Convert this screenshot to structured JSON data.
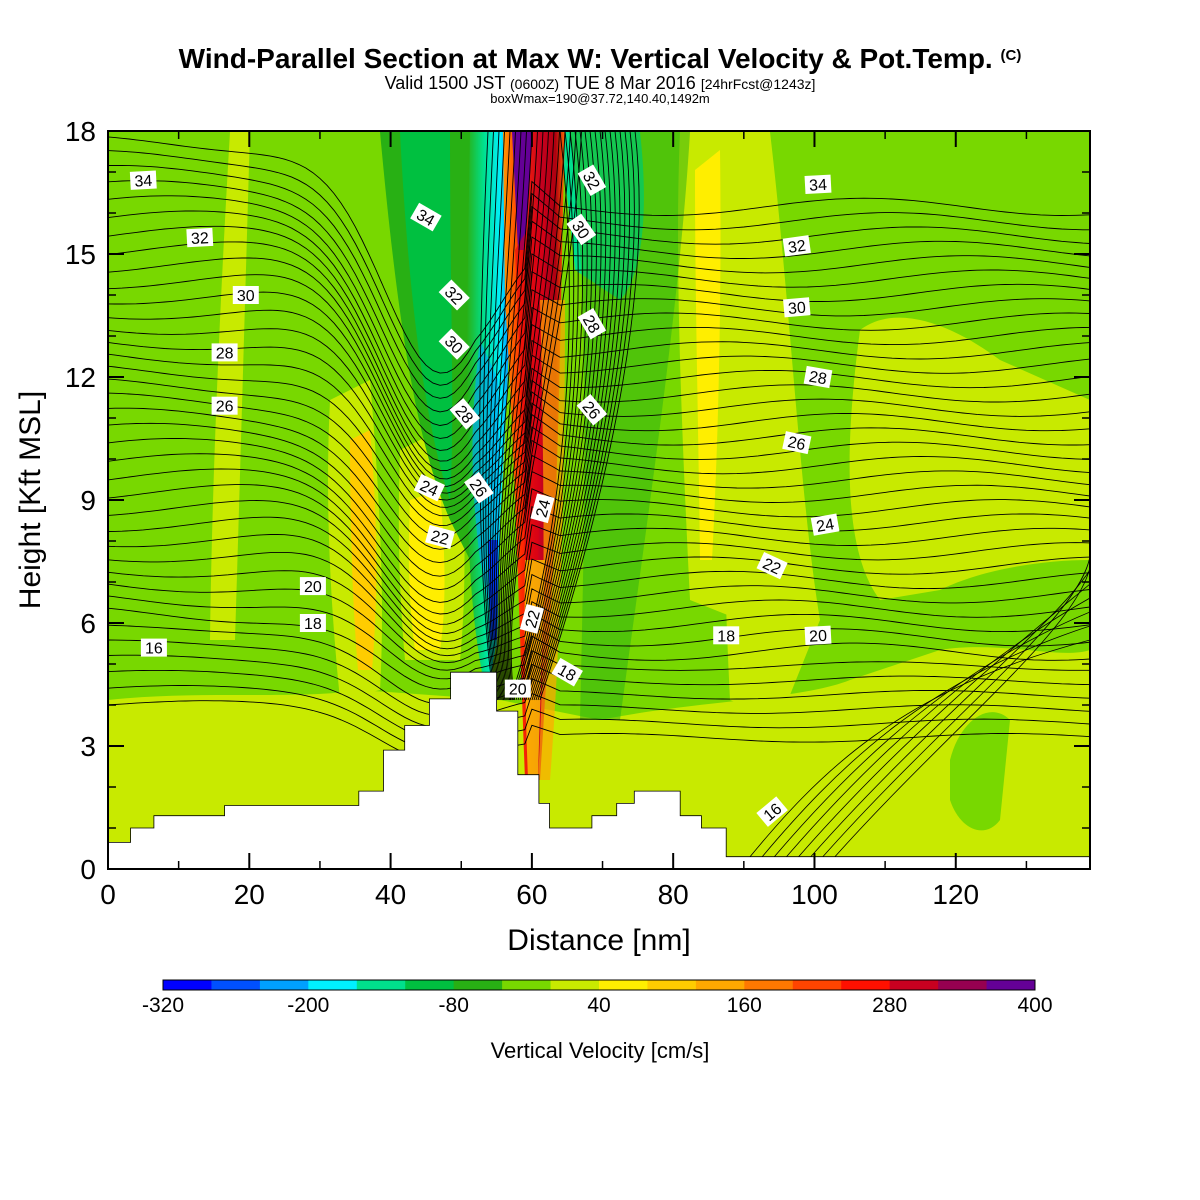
{
  "title": {
    "main": "Wind-Parallel Section at Max W: Vertical Velocity & Pot.Temp.",
    "copyright": "(C)",
    "valid_prefix": "Valid 1500 JST",
    "valid_utc": "(0600Z)",
    "valid_date": "TUE 8 Mar 2016",
    "forecast": "[24hrFcst@1243z]",
    "box": "boxWmax=190@37.72,140.40,1492m"
  },
  "chart_data": {
    "type": "heatmap",
    "xlabel": "Distance [nm]",
    "ylabel": "Height [Kft MSL]",
    "xlim": [
      0,
      139
    ],
    "ylim": [
      0,
      18
    ],
    "x_ticks": [
      "0",
      "20",
      "40",
      "60",
      "80",
      "100",
      "120"
    ],
    "y_ticks": [
      "0",
      "3",
      "6",
      "9",
      "12",
      "15",
      "18"
    ],
    "colorbar": {
      "label": "Vertical Velocity [cm/s]",
      "tick_labels": [
        "-320",
        "-200",
        "-80",
        "40",
        "160",
        "280",
        "400"
      ],
      "colors": [
        "#0000ff",
        "#0050ff",
        "#00a0ff",
        "#00f0ff",
        "#00e08c",
        "#00c040",
        "#28b014",
        "#78d800",
        "#c8ea00",
        "#ffee00",
        "#ffcc00",
        "#ffa800",
        "#ff7800",
        "#ff4400",
        "#ff1000",
        "#c80020",
        "#960050",
        "#640096"
      ]
    },
    "contour_labels": [
      {
        "text": "34",
        "x": 5,
        "y": 16.8,
        "angle": -3
      },
      {
        "text": "32",
        "x": 13,
        "y": 15.4,
        "angle": -3
      },
      {
        "text": "30",
        "x": 19.5,
        "y": 14.0,
        "angle": 0
      },
      {
        "text": "28",
        "x": 16.5,
        "y": 12.6,
        "angle": 0
      },
      {
        "text": "26",
        "x": 16.5,
        "y": 11.3,
        "angle": 0
      },
      {
        "text": "20",
        "x": 29,
        "y": 6.9,
        "angle": 0
      },
      {
        "text": "18",
        "x": 29,
        "y": 6.0,
        "angle": 0
      },
      {
        "text": "16",
        "x": 6.5,
        "y": 5.4,
        "angle": 0
      },
      {
        "text": "34",
        "x": 45,
        "y": 15.9,
        "angle": 30
      },
      {
        "text": "32",
        "x": 49,
        "y": 14.0,
        "angle": 45
      },
      {
        "text": "30",
        "x": 49,
        "y": 12.8,
        "angle": 45
      },
      {
        "text": "28",
        "x": 50.5,
        "y": 11.1,
        "angle": 50
      },
      {
        "text": "24",
        "x": 45.5,
        "y": 9.3,
        "angle": 25
      },
      {
        "text": "26",
        "x": 52.5,
        "y": 9.3,
        "angle": 55
      },
      {
        "text": "22",
        "x": 47,
        "y": 8.1,
        "angle": 15
      },
      {
        "text": "24",
        "x": 61.5,
        "y": 8.8,
        "angle": -75
      },
      {
        "text": "22",
        "x": 60,
        "y": 6.1,
        "angle": -75
      },
      {
        "text": "20",
        "x": 58,
        "y": 4.4,
        "angle": 0
      },
      {
        "text": "18",
        "x": 65,
        "y": 4.8,
        "angle": 30
      },
      {
        "text": "32",
        "x": 68.5,
        "y": 16.8,
        "angle": 60
      },
      {
        "text": "30",
        "x": 67,
        "y": 15.6,
        "angle": 55
      },
      {
        "text": "28",
        "x": 68.5,
        "y": 13.3,
        "angle": 60
      },
      {
        "text": "26",
        "x": 68.5,
        "y": 11.2,
        "angle": 50
      },
      {
        "text": "34",
        "x": 100.5,
        "y": 16.7,
        "angle": -3
      },
      {
        "text": "32",
        "x": 97.5,
        "y": 15.2,
        "angle": -8
      },
      {
        "text": "30",
        "x": 97.5,
        "y": 13.7,
        "angle": -5
      },
      {
        "text": "28",
        "x": 100.5,
        "y": 12.0,
        "angle": 10
      },
      {
        "text": "26",
        "x": 97.5,
        "y": 10.4,
        "angle": 12
      },
      {
        "text": "24",
        "x": 101.5,
        "y": 8.4,
        "angle": -10
      },
      {
        "text": "22",
        "x": 94,
        "y": 7.4,
        "angle": 25
      },
      {
        "text": "20",
        "x": 100.5,
        "y": 5.7,
        "angle": -3
      },
      {
        "text": "18",
        "x": 87.5,
        "y": 5.7,
        "angle": 0
      },
      {
        "text": "16",
        "x": 94,
        "y": 1.4,
        "angle": -40
      }
    ],
    "terrain_steps": [
      [
        0,
        0.65
      ],
      [
        3.2,
        1.0
      ],
      [
        6.5,
        1.3
      ],
      [
        16.5,
        1.55
      ],
      [
        35.5,
        1.9
      ],
      [
        39,
        2.9
      ],
      [
        42,
        3.5
      ],
      [
        45.5,
        4.15
      ],
      [
        48.5,
        4.8
      ],
      [
        55,
        3.85
      ],
      [
        58,
        2.3
      ],
      [
        61,
        1.6
      ],
      [
        62.5,
        1.0
      ],
      [
        68.5,
        1.3
      ],
      [
        72,
        1.6
      ],
      [
        74.5,
        1.9
      ],
      [
        81,
        1.3
      ],
      [
        84,
        1.0
      ],
      [
        87.5,
        0.3
      ],
      [
        139,
        0.3
      ]
    ]
  },
  "icons": {
    "copyright": "copyright-mark"
  }
}
